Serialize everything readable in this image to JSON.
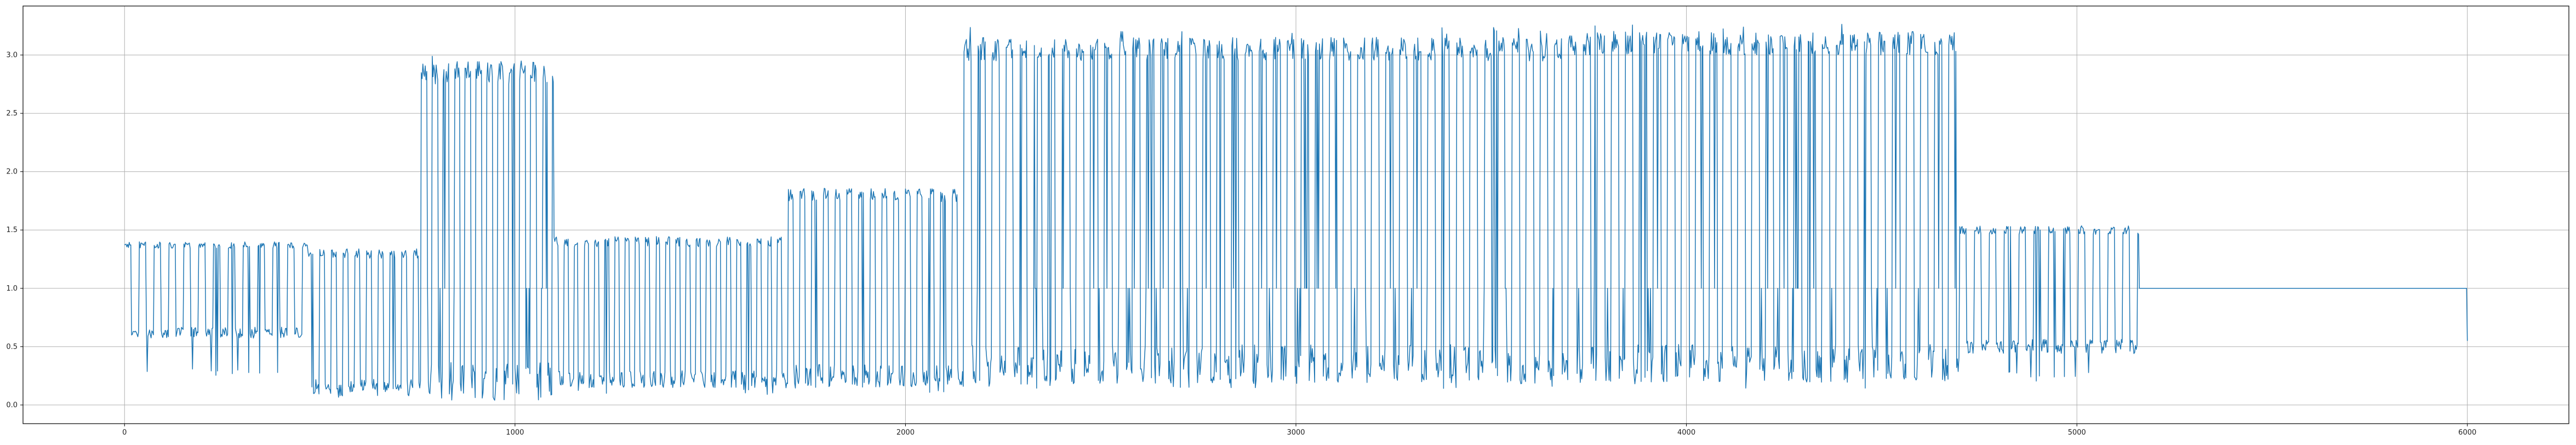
{
  "chart_data": {
    "type": "line",
    "title": "",
    "xlabel": "",
    "ylabel": "",
    "xlim": [
      -260,
      6260
    ],
    "ylim": [
      -0.16,
      3.42
    ],
    "grid": true,
    "x_ticks": [
      0,
      1000,
      2000,
      3000,
      4000,
      5000,
      6000
    ],
    "y_ticks": [
      0.0,
      0.5,
      1.0,
      1.5,
      2.0,
      2.5,
      3.0
    ],
    "x_tick_labels": [
      "0",
      "1000",
      "2000",
      "3000",
      "4000",
      "5000",
      "6000"
    ],
    "y_tick_labels": [
      "0.0",
      "0.5",
      "1.0",
      "1.5",
      "2.0",
      "2.5",
      "3.0"
    ],
    "colors": {
      "series": "#1f77b4",
      "grid": "#b0b0b0",
      "frame": "#000000"
    },
    "series": [
      {
        "segments": [
          {
            "x_start": 0,
            "x_end": 470,
            "high": 1.37,
            "low": 0.62,
            "cycle_period": 38
          },
          {
            "x_start": 470,
            "x_end": 760,
            "high": 1.3,
            "low": 0.15,
            "cycle_period": 30
          },
          {
            "x_start": 760,
            "x_end": 1100,
            "high": 2.85,
            "low": 0.2,
            "cycle_period": 28
          },
          {
            "x_start": 1100,
            "x_end": 1700,
            "high": 1.4,
            "low": 0.22,
            "cycle_period": 26
          },
          {
            "x_start": 1700,
            "x_end": 2150,
            "high": 1.8,
            "low": 0.25,
            "cycle_period": 30
          },
          {
            "x_start": 2150,
            "x_end": 3700,
            "high": 3.05,
            "low": 0.35,
            "cycle_period": 36
          },
          {
            "x_start": 3700,
            "x_end": 4700,
            "high": 3.1,
            "low": 0.35,
            "cycle_period": 36
          },
          {
            "x_start": 4700,
            "x_end": 5160,
            "high": 1.5,
            "low": 0.5,
            "cycle_period": 38
          },
          {
            "x_start": 5160,
            "x_end": 6000,
            "high": 1.0,
            "low": 1.0,
            "cycle_period": 0
          }
        ],
        "end_value": 0.55
      }
    ]
  }
}
